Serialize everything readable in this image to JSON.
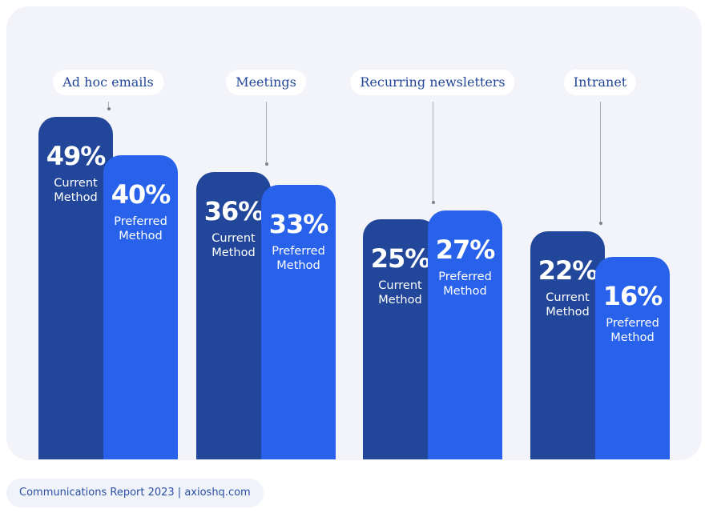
{
  "chart_data": {
    "type": "bar",
    "categories": [
      "Ad hoc emails",
      "Meetings",
      "Recurring newsletters",
      "Intranet"
    ],
    "series": [
      {
        "name": "Current Method",
        "values": [
          49,
          36,
          25,
          22
        ],
        "labels": [
          "49%",
          "36%",
          "25%",
          "22%"
        ],
        "color": "#22479a"
      },
      {
        "name": "Preferred Method",
        "values": [
          40,
          33,
          27,
          16
        ],
        "labels": [
          "40%",
          "33%",
          "27%",
          "16%"
        ],
        "color": "#2862ea"
      }
    ],
    "unit": "%",
    "grid": false
  },
  "footer": "Communications Report 2023  |  axioshq.com"
}
